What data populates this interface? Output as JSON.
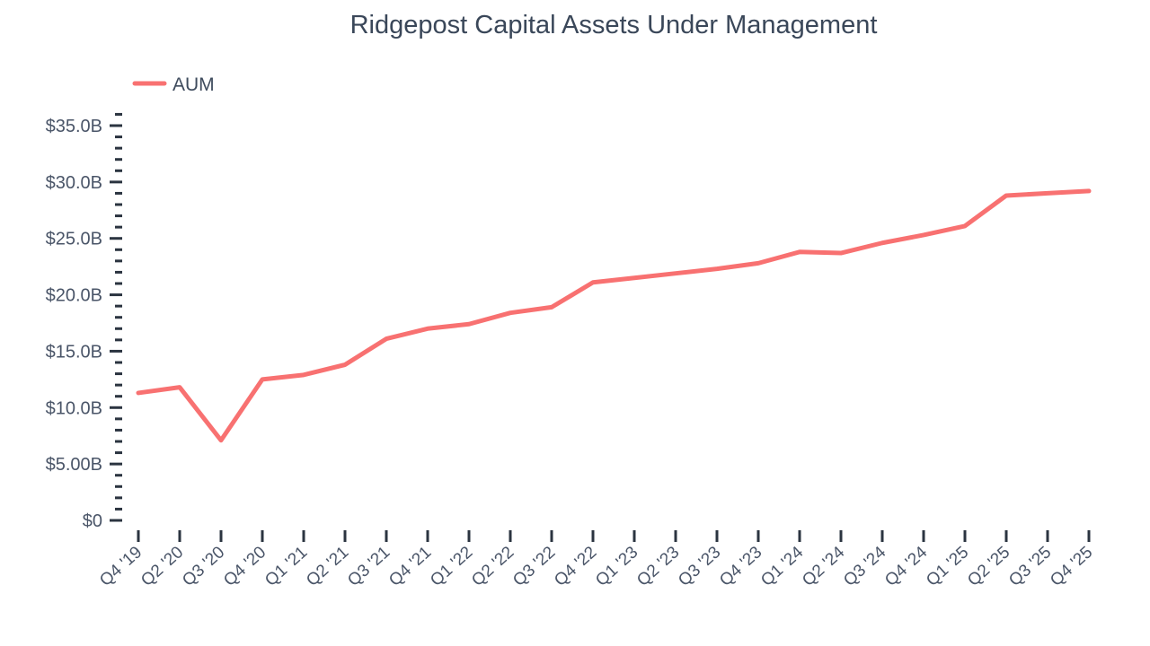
{
  "chart": {
    "title": "Ridgepost Capital Assets Under Management",
    "legend": {
      "label": "AUM",
      "position": "top-left"
    },
    "colors": {
      "line": "#F87171",
      "title_text": "#3a4759",
      "axis_text": "#4a5568",
      "tick_mark": "#2b3440",
      "background": "#ffffff"
    }
  },
  "chart_data": {
    "type": "line",
    "title": "Ridgepost Capital Assets Under Management",
    "units": "USD billions",
    "categories": [
      "Q4 '19",
      "Q2 '20",
      "Q3 '20",
      "Q4 '20",
      "Q1 '21",
      "Q2 '21",
      "Q3 '21",
      "Q4 '21",
      "Q1 '22",
      "Q2 '22",
      "Q3 '22",
      "Q4 '22",
      "Q1 '23",
      "Q2 '23",
      "Q3 '23",
      "Q4 '23",
      "Q1 '24",
      "Q2 '24",
      "Q3 '24",
      "Q4 '24",
      "Q1 '25",
      "Q2 '25",
      "Q3 '25",
      "Q4 '25"
    ],
    "series": [
      {
        "name": "AUM",
        "values": [
          11.3,
          11.8,
          7.1,
          12.5,
          12.9,
          13.8,
          16.1,
          17.0,
          17.4,
          18.4,
          18.9,
          21.1,
          21.5,
          21.9,
          22.3,
          22.8,
          23.8,
          23.7,
          24.6,
          25.3,
          26.1,
          28.8,
          29.0,
          29.2
        ]
      }
    ],
    "xlabel": "",
    "ylabel": "",
    "ylim": [
      0,
      36
    ],
    "y_major_step": 5,
    "y_minor_step": 1,
    "y_major_ticks": [
      0,
      5,
      10,
      15,
      20,
      25,
      30,
      35
    ],
    "y_tick_labels": [
      "$0",
      "$5.00B",
      "$10.0B",
      "$15.0B",
      "$20.0B",
      "$25.0B",
      "$30.0B",
      "$35.0B"
    ],
    "x_tick_label_rotation_deg": -42,
    "grid": false,
    "legend_position": "top-left"
  }
}
